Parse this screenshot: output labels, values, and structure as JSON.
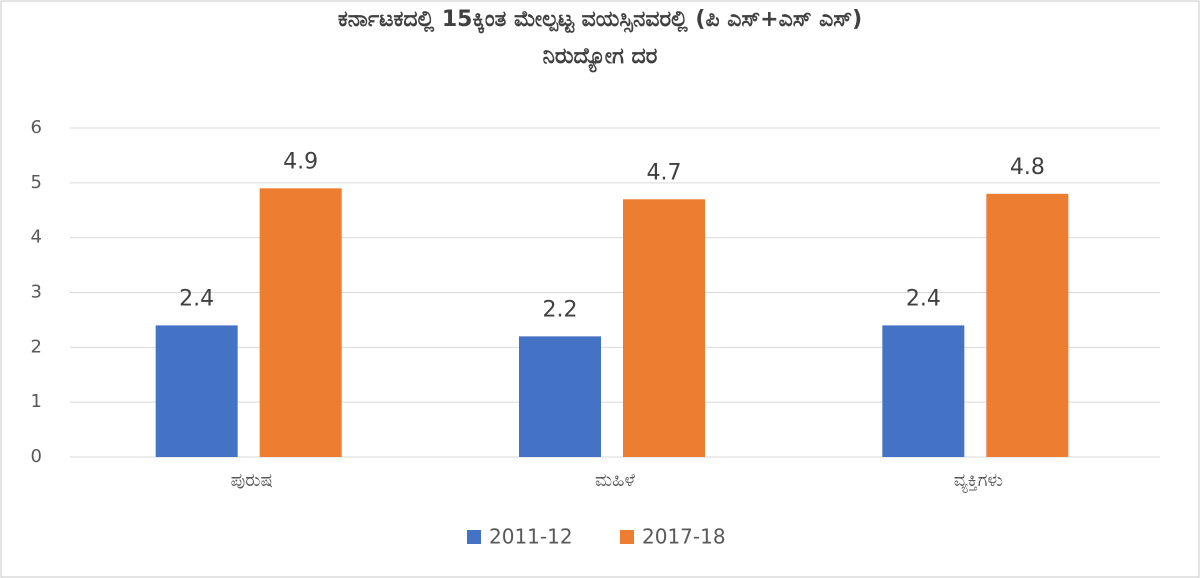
{
  "chart_data": {
    "type": "bar",
    "title": [
      "ಕರ್ನಾಟಕದಲ್ಲಿ 15ಕ್ಕಿಂತ ಮೇಲ್ಪಟ್ಟ ವಯಸ್ಸಿನವರಲ್ಲಿ (ಪಿ ಎಸ್+ಎಸ್ ಎಸ್)",
      "ನಿರುದ್ಯೋಗ ದರ"
    ],
    "categories": [
      "ಪುರುಷ",
      "ಮಹಿಳೆ",
      "ವ್ಯಕ್ತಿಗಳು"
    ],
    "series": [
      {
        "name": "2011-12",
        "color": "#4472c4",
        "values": [
          2.4,
          2.2,
          2.4
        ]
      },
      {
        "name": "2017-18",
        "color": "#ed7d31",
        "values": [
          4.9,
          4.7,
          4.8
        ]
      }
    ],
    "ylim": [
      0,
      6
    ],
    "yticks": [
      0,
      1,
      2,
      3,
      4,
      5,
      6
    ],
    "grid": true,
    "legend": "bottom"
  }
}
